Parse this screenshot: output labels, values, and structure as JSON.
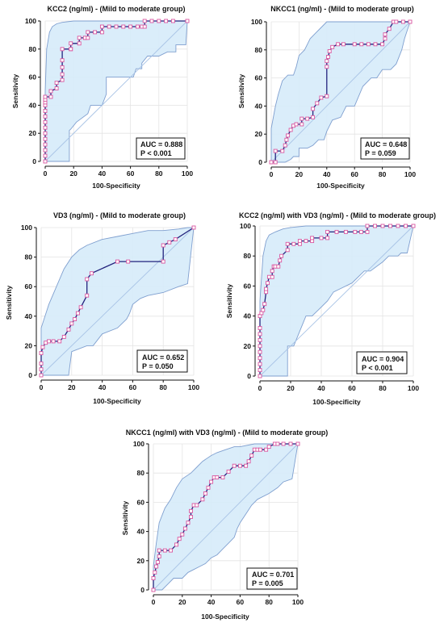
{
  "chart_data": [
    {
      "type": "line",
      "title": "KCC2 (ng/ml) - (Mild to moderate group)",
      "xlabel": "100-Specificity",
      "ylabel": "Sensitivity",
      "xlim": [
        0,
        100
      ],
      "ylim": [
        0,
        100
      ],
      "xticks": [
        "0",
        "20",
        "40",
        "60",
        "80",
        "100"
      ],
      "yticks": [
        "0",
        "20",
        "40",
        "60",
        "80",
        "100"
      ],
      "grid": true,
      "diagonal": true,
      "auc_label": "AUC = 0.888",
      "p_label": "P < 0.001",
      "legend_position": "bottom-right",
      "colors": {
        "curve": "#23237d",
        "marker": "#d9569f",
        "band": "#d6ebfa",
        "band_edge": "#7f9fcf",
        "diagonal": "#a9c4e6"
      },
      "roc": {
        "x": [
          0,
          0,
          0,
          0,
          0,
          0,
          0,
          0,
          0,
          0,
          0,
          0,
          0,
          0,
          4,
          4,
          8,
          8,
          12,
          12,
          12,
          12,
          12,
          18,
          18,
          18,
          24,
          24,
          28,
          28,
          30,
          30,
          35,
          40,
          40,
          45,
          50,
          55,
          60,
          65,
          68,
          70,
          70,
          75,
          80,
          85,
          90,
          100
        ],
        "y": [
          0,
          4,
          8,
          12,
          16,
          20,
          24,
          28,
          32,
          36,
          40,
          42,
          44,
          46,
          46,
          50,
          52,
          56,
          58,
          62,
          67,
          72,
          80,
          80,
          80,
          84,
          84,
          88,
          88,
          88,
          88,
          92,
          92,
          92,
          96,
          96,
          96,
          96,
          96,
          96,
          96,
          96,
          100,
          100,
          100,
          100,
          100,
          100
        ]
      },
      "ci_upper": {
        "x": [
          0,
          0,
          1,
          3,
          5,
          8,
          12,
          20,
          30,
          40,
          50,
          60,
          70,
          80,
          90,
          100
        ],
        "y": [
          0,
          50,
          80,
          92,
          96,
          98,
          99,
          100,
          100,
          100,
          100,
          100,
          100,
          100,
          100,
          100
        ]
      },
      "ci_lower": {
        "x": [
          0,
          17,
          17,
          18,
          22,
          30,
          32,
          40,
          43,
          43,
          52,
          62,
          64,
          68,
          68,
          72,
          80,
          86,
          92,
          92,
          99,
          100
        ],
        "y": [
          0,
          0,
          22,
          23,
          28,
          34,
          40,
          40,
          48,
          60,
          60,
          60,
          66,
          66,
          70,
          75,
          75,
          78,
          78,
          83,
          83,
          100
        ]
      }
    },
    {
      "type": "line",
      "title": "NKCC1 (ng/ml) - (Mild to moderate group)",
      "xlabel": "100-Specificity",
      "ylabel": "Sensitivity",
      "xlim": [
        0,
        100
      ],
      "ylim": [
        0,
        100
      ],
      "xticks": [
        "0",
        "20",
        "40",
        "60",
        "80",
        "100"
      ],
      "yticks": [
        "0",
        "20",
        "40",
        "60",
        "80",
        "100"
      ],
      "grid": true,
      "diagonal": true,
      "auc_label": "AUC = 0.648",
      "p_label": "P = 0.059",
      "legend_position": "bottom-right",
      "colors": {
        "curve": "#23237d",
        "marker": "#d9569f",
        "band": "#d6ebfa",
        "band_edge": "#7f9fcf",
        "diagonal": "#a9c4e6"
      },
      "roc": {
        "x": [
          0,
          3,
          3,
          8,
          10,
          11,
          12,
          14,
          16,
          18,
          22,
          22,
          26,
          30,
          30,
          33,
          36,
          40,
          40,
          40,
          41,
          42,
          44,
          48,
          52,
          60,
          65,
          70,
          75,
          80,
          82,
          82,
          85,
          88,
          90,
          95,
          100
        ],
        "y": [
          0,
          0,
          8,
          8,
          12,
          16,
          19,
          23,
          26,
          27,
          27,
          31,
          31,
          32,
          38,
          42,
          46,
          47,
          68,
          72,
          75,
          79,
          82,
          84,
          84,
          84,
          84,
          84,
          84,
          84,
          88,
          91,
          95,
          100,
          100,
          100,
          100
        ]
      },
      "ci_upper": {
        "x": [
          0,
          0,
          3,
          5,
          8,
          12,
          16,
          18,
          20,
          24,
          28,
          32,
          36,
          40,
          50,
          60,
          70,
          80,
          90,
          100
        ],
        "y": [
          0,
          24,
          40,
          48,
          58,
          62,
          62,
          68,
          76,
          80,
          88,
          92,
          96,
          100,
          100,
          100,
          100,
          100,
          100,
          100
        ]
      },
      "ci_lower": {
        "x": [
          0,
          8,
          10,
          14,
          16,
          20,
          20,
          26,
          30,
          34,
          38,
          40,
          44,
          50,
          54,
          60,
          66,
          72,
          76,
          80,
          86,
          90,
          94,
          96,
          100
        ],
        "y": [
          0,
          0,
          0,
          2,
          4,
          4,
          10,
          10,
          12,
          16,
          16,
          22,
          30,
          32,
          40,
          40,
          54,
          60,
          60,
          66,
          66,
          70,
          80,
          88,
          100
        ]
      }
    },
    {
      "type": "line",
      "title": "VD3 (ng/ml) - (Mild to moderate group)",
      "xlabel": "100-Specificity",
      "ylabel": "Sensitivity",
      "xlim": [
        0,
        100
      ],
      "ylim": [
        0,
        100
      ],
      "xticks": [
        "0",
        "20",
        "40",
        "60",
        "80",
        "100"
      ],
      "yticks": [
        "0",
        "20",
        "40",
        "60",
        "80",
        "100"
      ],
      "grid": true,
      "diagonal": true,
      "auc_label": "AUC = 0.652",
      "p_label": "P = 0.050",
      "legend_position": "bottom-right",
      "colors": {
        "curve": "#23237d",
        "marker": "#d9569f",
        "band": "#d6ebfa",
        "band_edge": "#7f9fcf",
        "diagonal": "#a9c4e6"
      },
      "roc": {
        "x": [
          0,
          0,
          0,
          0,
          1,
          3,
          5,
          8,
          12,
          15,
          18,
          20,
          22,
          24,
          26,
          30,
          30,
          33,
          50,
          57,
          80,
          80,
          84,
          88,
          100
        ],
        "y": [
          0,
          4,
          8,
          15,
          19,
          22,
          23,
          23,
          23,
          26,
          31,
          35,
          38,
          42,
          46,
          54,
          65,
          69,
          77,
          77,
          77,
          88,
          90,
          92,
          100
        ]
      },
      "ci_upper": {
        "x": [
          0,
          0,
          5,
          10,
          15,
          20,
          25,
          30,
          40,
          50,
          60,
          70,
          80,
          90,
          96,
          100
        ],
        "y": [
          0,
          32,
          48,
          60,
          72,
          80,
          85,
          88,
          92,
          94,
          96,
          98,
          98,
          99,
          100,
          100
        ]
      },
      "ci_lower": {
        "x": [
          0,
          18,
          20,
          30,
          34,
          40,
          50,
          56,
          58,
          60,
          65,
          70,
          80,
          90,
          96,
          100
        ],
        "y": [
          0,
          0,
          16,
          20,
          20,
          28,
          32,
          38,
          42,
          48,
          52,
          54,
          56,
          60,
          62,
          100
        ]
      }
    },
    {
      "type": "line",
      "title": "KCC2 (ng/ml) with VD3 (ng/ml) - (Mild to moderate group)",
      "xlabel": "100-Specificity",
      "ylabel": "Sensitivity",
      "xlim": [
        0,
        100
      ],
      "ylim": [
        0,
        100
      ],
      "xticks": [
        "0",
        "20",
        "40",
        "60",
        "80",
        "100"
      ],
      "yticks": [
        "0",
        "20",
        "40",
        "60",
        "80",
        "100"
      ],
      "grid": true,
      "diagonal": true,
      "auc_label": "AUC = 0.904",
      "p_label": "P < 0.001",
      "legend_position": "bottom-right",
      "colors": {
        "curve": "#23237d",
        "marker": "#d9569f",
        "band": "#d6ebfa",
        "band_edge": "#7f9fcf",
        "diagonal": "#a9c4e6"
      },
      "roc": {
        "x": [
          0,
          0,
          0,
          0,
          0,
          0,
          0,
          0,
          0,
          0,
          1,
          2,
          3,
          4,
          4,
          5,
          6,
          8,
          8,
          9,
          10,
          12,
          13,
          14,
          18,
          18,
          22,
          26,
          26,
          30,
          34,
          34,
          40,
          44,
          44,
          50,
          56,
          62,
          66,
          70,
          70,
          75,
          80,
          85,
          90,
          95,
          100
        ],
        "y": [
          0,
          4,
          8,
          12,
          16,
          20,
          24,
          28,
          32,
          40,
          42,
          44,
          48,
          56,
          58,
          62,
          66,
          66,
          70,
          73,
          73,
          73,
          77,
          80,
          84,
          88,
          88,
          88,
          90,
          90,
          90,
          92,
          92,
          92,
          96,
          96,
          96,
          96,
          96,
          96,
          100,
          100,
          100,
          100,
          100,
          100,
          100
        ]
      },
      "ci_upper": {
        "x": [
          0,
          0,
          2,
          4,
          6,
          10,
          15,
          20,
          30,
          40,
          60,
          80,
          100
        ],
        "y": [
          0,
          50,
          80,
          90,
          94,
          96,
          98,
          99,
          100,
          100,
          100,
          100,
          100
        ]
      },
      "ci_lower": {
        "x": [
          0,
          18,
          18,
          22,
          30,
          34,
          38,
          44,
          48,
          52,
          60,
          62,
          68,
          72,
          80,
          84,
          90,
          92,
          96,
          100
        ],
        "y": [
          0,
          0,
          20,
          20,
          40,
          40,
          44,
          50,
          56,
          58,
          62,
          64,
          70,
          70,
          76,
          80,
          80,
          82,
          82,
          100
        ]
      }
    },
    {
      "type": "line",
      "title": "NKCC1 (ng/ml) with VD3 (ng/ml) - (Mild to moderate group)",
      "xlabel": "100-Specificity",
      "ylabel": "Sensitivity",
      "xlim": [
        0,
        100
      ],
      "ylim": [
        0,
        100
      ],
      "xticks": [
        "0",
        "20",
        "40",
        "60",
        "80",
        "100"
      ],
      "yticks": [
        "0",
        "20",
        "40",
        "60",
        "80",
        "100"
      ],
      "grid": true,
      "diagonal": true,
      "auc_label": "AUC = 0.701",
      "p_label": "P = 0.005",
      "legend_position": "bottom-right",
      "colors": {
        "curve": "#23237d",
        "marker": "#d9569f",
        "band": "#d6ebfa",
        "band_edge": "#7f9fcf",
        "diagonal": "#a9c4e6"
      },
      "roc": {
        "x": [
          0,
          0,
          1,
          2,
          3,
          4,
          4,
          8,
          12,
          16,
          18,
          20,
          22,
          24,
          26,
          26,
          28,
          30,
          34,
          36,
          38,
          40,
          42,
          44,
          48,
          52,
          56,
          60,
          64,
          66,
          68,
          70,
          72,
          74,
          78,
          80,
          84,
          86,
          90,
          95,
          100
        ],
        "y": [
          0,
          8,
          12,
          16,
          19,
          23,
          27,
          27,
          27,
          31,
          35,
          38,
          42,
          46,
          50,
          54,
          58,
          58,
          62,
          66,
          70,
          74,
          77,
          77,
          77,
          81,
          85,
          85,
          85,
          88,
          92,
          96,
          96,
          96,
          96,
          98,
          100,
          100,
          100,
          100,
          100
        ]
      },
      "ci_upper": {
        "x": [
          0,
          0,
          2,
          4,
          8,
          12,
          16,
          20,
          26,
          30,
          34,
          40,
          44,
          50,
          56,
          60,
          70,
          80,
          90,
          100
        ],
        "y": [
          0,
          16,
          32,
          46,
          56,
          62,
          70,
          76,
          80,
          84,
          88,
          92,
          94,
          96,
          98,
          98,
          100,
          100,
          100,
          100
        ]
      },
      "ci_lower": {
        "x": [
          0,
          6,
          10,
          14,
          20,
          24,
          28,
          32,
          36,
          40,
          44,
          48,
          52,
          56,
          58,
          60,
          64,
          68,
          72,
          80,
          86,
          90,
          96,
          100
        ],
        "y": [
          0,
          0,
          4,
          8,
          8,
          12,
          14,
          16,
          18,
          22,
          24,
          28,
          32,
          36,
          42,
          46,
          52,
          58,
          62,
          66,
          70,
          74,
          76,
          100
        ]
      }
    }
  ]
}
